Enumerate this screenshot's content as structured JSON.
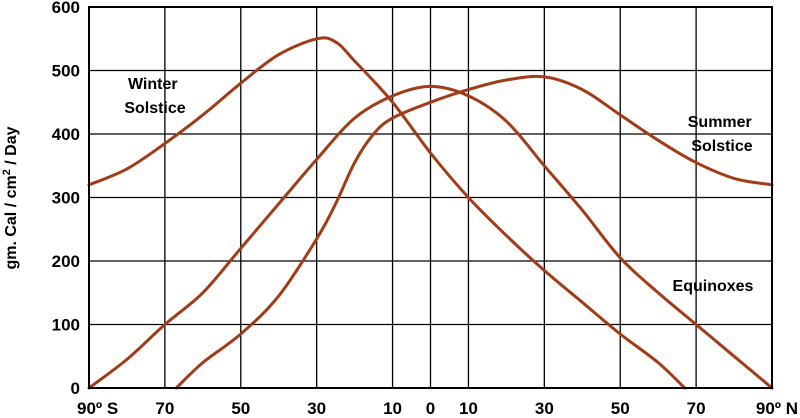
{
  "chart_data": {
    "type": "line",
    "title": "",
    "xlabel": "",
    "ylabel": "gm. Cal / cm² / Day",
    "ylabel_parts": {
      "main": "gm. Cal / cm",
      "sup": "2",
      "tail": " / Day"
    },
    "ylim": [
      0,
      600
    ],
    "y_ticks": [
      "0",
      "100",
      "200",
      "300",
      "400",
      "500",
      "600"
    ],
    "xlim": [
      -90,
      90
    ],
    "x_ticks": [
      {
        "value": -90,
        "label": "90º S"
      },
      {
        "value": -70,
        "label": "70"
      },
      {
        "value": -50,
        "label": "50"
      },
      {
        "value": -30,
        "label": "30"
      },
      {
        "value": -10,
        "label": "10"
      },
      {
        "value": 0,
        "label": "0"
      },
      {
        "value": 10,
        "label": "10"
      },
      {
        "value": 30,
        "label": "30"
      },
      {
        "value": 50,
        "label": "50"
      },
      {
        "value": 70,
        "label": "70"
      },
      {
        "value": 90,
        "label": "90º N"
      }
    ],
    "grid": true,
    "line_color": "#a13c17",
    "series": [
      {
        "name": "Winter Solstice",
        "label_lines": [
          "Winter",
          "Solstice"
        ],
        "points": [
          [
            -90,
            320
          ],
          [
            -80,
            345
          ],
          [
            -70,
            385
          ],
          [
            -60,
            430
          ],
          [
            -50,
            480
          ],
          [
            -40,
            525
          ],
          [
            -30,
            550
          ],
          [
            -25,
            545
          ],
          [
            -20,
            515
          ],
          [
            -10,
            450
          ],
          [
            0,
            370
          ],
          [
            10,
            300
          ],
          [
            20,
            240
          ],
          [
            30,
            185
          ],
          [
            40,
            135
          ],
          [
            50,
            85
          ],
          [
            60,
            40
          ],
          [
            67,
            0
          ]
        ]
      },
      {
        "name": "Summer Solstice",
        "label_lines": [
          "Summer",
          "Solstice"
        ],
        "points": [
          [
            -67,
            0
          ],
          [
            -60,
            40
          ],
          [
            -50,
            85
          ],
          [
            -40,
            145
          ],
          [
            -30,
            235
          ],
          [
            -25,
            290
          ],
          [
            -20,
            355
          ],
          [
            -15,
            400
          ],
          [
            -10,
            425
          ],
          [
            0,
            450
          ],
          [
            10,
            470
          ],
          [
            20,
            485
          ],
          [
            30,
            490
          ],
          [
            40,
            470
          ],
          [
            50,
            430
          ],
          [
            60,
            390
          ],
          [
            70,
            355
          ],
          [
            80,
            330
          ],
          [
            90,
            320
          ]
        ]
      },
      {
        "name": "Equinoxes",
        "label_lines": [
          "Equinoxes"
        ],
        "points": [
          [
            -90,
            0
          ],
          [
            -80,
            45
          ],
          [
            -70,
            100
          ],
          [
            -60,
            150
          ],
          [
            -50,
            220
          ],
          [
            -40,
            290
          ],
          [
            -30,
            360
          ],
          [
            -20,
            425
          ],
          [
            -10,
            460
          ],
          [
            0,
            475
          ],
          [
            10,
            460
          ],
          [
            20,
            420
          ],
          [
            30,
            350
          ],
          [
            40,
            280
          ],
          [
            50,
            205
          ],
          [
            60,
            150
          ],
          [
            70,
            100
          ],
          [
            80,
            50
          ],
          [
            90,
            0
          ]
        ]
      }
    ]
  }
}
